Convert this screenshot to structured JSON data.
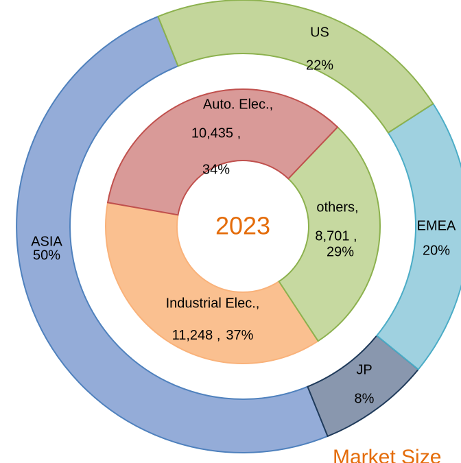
{
  "chart_data": [
    {
      "type": "donut",
      "name": "region",
      "categories": [
        "US",
        "EMEA",
        "JP",
        "ASIA"
      ],
      "values": [
        22,
        20,
        8,
        50
      ],
      "value_labels": [
        "22%",
        "20%",
        "8%",
        "50%"
      ],
      "colors": [
        "#c3d69b",
        "#9fd1e0",
        "#8997ae",
        "#94acd8"
      ],
      "strokes": [
        "#8cb14e",
        "#4bacc6",
        "#1f3a5a",
        "#4f81bd"
      ]
    },
    {
      "type": "donut",
      "name": "application",
      "title": "2023",
      "subtitle": "Market Size",
      "categories": [
        "Auto. Elec.,",
        "others,",
        "Industrial Elec.,"
      ],
      "values": [
        10435,
        8701,
        11248
      ],
      "value_labels": [
        "10,435 ,",
        "8,701 ,",
        "11,248 ,"
      ],
      "percent_labels": [
        "34%",
        "29%",
        "37%"
      ],
      "colors": [
        "#d99a98",
        "#c6d9a0",
        "#fac090"
      ],
      "strokes": [
        "#c0504d",
        "#8cb14e",
        "#f9b27a"
      ]
    }
  ]
}
